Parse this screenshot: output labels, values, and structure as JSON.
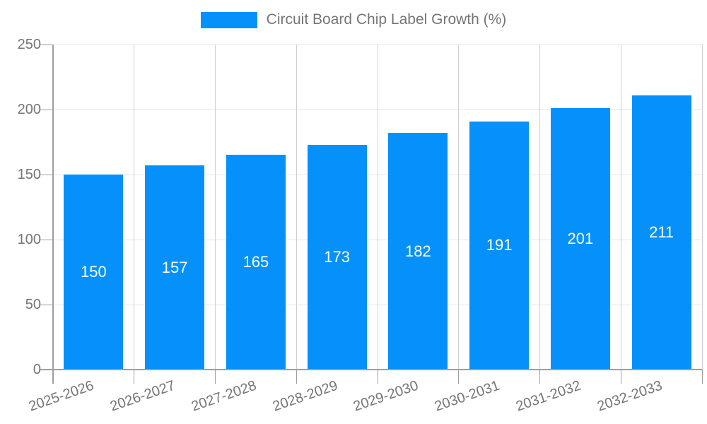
{
  "chart_data": {
    "type": "bar",
    "title": "Circuit Board Chip Label Growth (%)",
    "xlabel": "",
    "ylabel": "",
    "categories": [
      "2025-2026",
      "2026-2027",
      "2027-2028",
      "2028-2029",
      "2029-2030",
      "2030-2031",
      "2031-2032",
      "2032-2033"
    ],
    "values": [
      150,
      157,
      165,
      173,
      182,
      191,
      201,
      211
    ],
    "ylim": [
      0,
      250
    ],
    "yticks": [
      0,
      50,
      100,
      150,
      200,
      250
    ],
    "grid": true,
    "legend_position": "top-center",
    "x_label_rotation_deg": -19,
    "colors": {
      "bar": "#0591f9",
      "bar_label": "#ffffff",
      "axis": "#9e9e9e",
      "grid_h": "#e3e3e3",
      "grid_v": "#cfcfcf",
      "text": "#757575",
      "background": "#ffffff"
    }
  }
}
